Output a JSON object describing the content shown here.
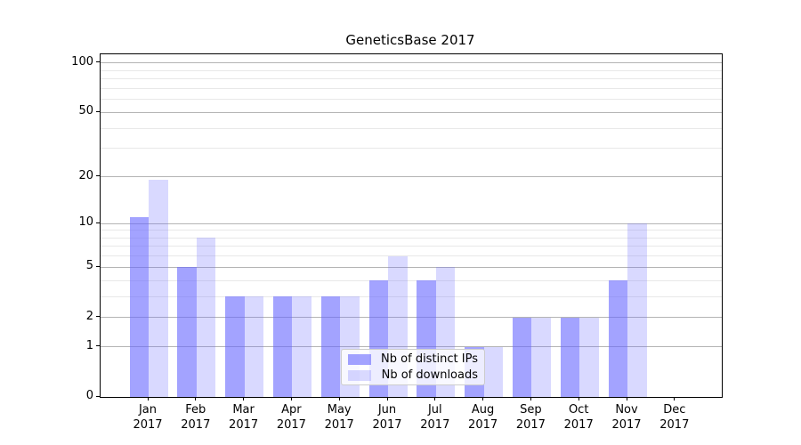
{
  "title": "GeneticsBase 2017",
  "chart_data": {
    "type": "bar",
    "title": "GeneticsBase 2017",
    "xlabel": "",
    "ylabel": "",
    "categories": [
      "Jan",
      "Feb",
      "Mar",
      "Apr",
      "May",
      "Jun",
      "Jul",
      "Aug",
      "Sep",
      "Oct",
      "Nov",
      "Dec"
    ],
    "year_label": "2017",
    "series": [
      {
        "name": "Nb of distinct IPs",
        "color": "rgba(102,102,255,0.6)",
        "values": [
          11,
          5,
          3,
          3,
          3,
          4,
          4,
          1,
          2,
          2,
          4,
          0
        ]
      },
      {
        "name": "Nb of downloads",
        "color": "rgba(102,102,255,0.25)",
        "values": [
          19,
          8,
          3,
          3,
          3,
          6,
          5,
          1,
          2,
          2,
          10,
          0
        ]
      }
    ],
    "yscale": "log1p",
    "ylim": [
      0,
      113
    ],
    "yticks": [
      0,
      1,
      2,
      5,
      10,
      20,
      50,
      100
    ],
    "yticks_minor": [
      3,
      4,
      6,
      7,
      8,
      9,
      30,
      40,
      60,
      70,
      80,
      90
    ],
    "grid": true,
    "legend_position": "lower center"
  },
  "colors": {
    "grid_major": "#b4b4b4",
    "grid_minor": "#e8e8e8",
    "frame": "#000000",
    "legend_border": "#cccccc"
  }
}
